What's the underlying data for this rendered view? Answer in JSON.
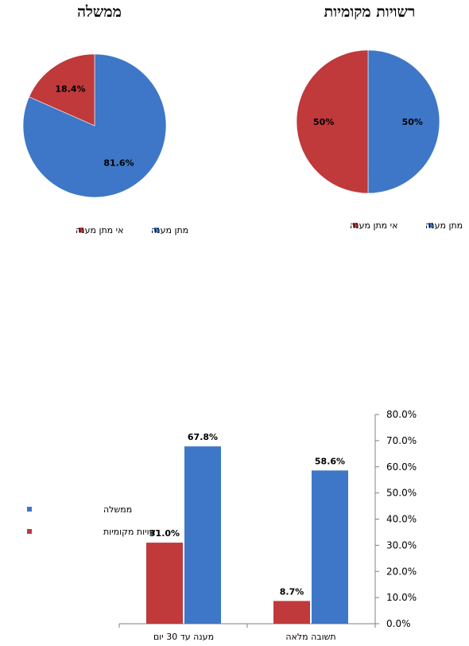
{
  "colors": {
    "blue": "#3e77c7",
    "red": "#c0393b"
  },
  "chart_data": [
    {
      "type": "pie",
      "title": "ממשלה",
      "slices": [
        {
          "name": "מתן מענה",
          "value": 81.6,
          "label": "81.6%",
          "color": "#3e77c7"
        },
        {
          "name": "אי מתן מענה",
          "value": 18.4,
          "label": "18.4%",
          "color": "#c0393b"
        }
      ],
      "legend": [
        "מתן מענה",
        "אי מתן מענה"
      ],
      "legend_position": "bottom"
    },
    {
      "type": "pie",
      "title": "רשויות מקומיות",
      "slices": [
        {
          "name": "מתן מענה",
          "value": 50,
          "label": "50%",
          "color": "#3e77c7"
        },
        {
          "name": "אי מתן מענה",
          "value": 50,
          "label": "50%",
          "color": "#c0393b"
        }
      ],
      "legend": [
        "מתן מענה",
        "אי מתן מענה"
      ],
      "legend_position": "bottom"
    },
    {
      "type": "bar",
      "title": "",
      "categories": [
        "תשובה מלאה",
        "מענה עד 30 יום"
      ],
      "series": [
        {
          "name": "ממשלה",
          "values": [
            58.6,
            67.8
          ],
          "labels": [
            "58.6%",
            "67.8%"
          ],
          "color": "#3e77c7"
        },
        {
          "name": "רשויות מקומיות",
          "values": [
            8.7,
            31.0
          ],
          "labels": [
            "8.7%",
            "31.0%"
          ],
          "color": "#c0393b"
        }
      ],
      "ylim": [
        0,
        80
      ],
      "yticks": [
        "0.0%",
        "10.0%",
        "20.0%",
        "30.0%",
        "40.0%",
        "50.0%",
        "60.0%",
        "70.0%",
        "80.0%"
      ],
      "y_axis_side": "right",
      "grid": false,
      "legend_position": "left"
    }
  ]
}
